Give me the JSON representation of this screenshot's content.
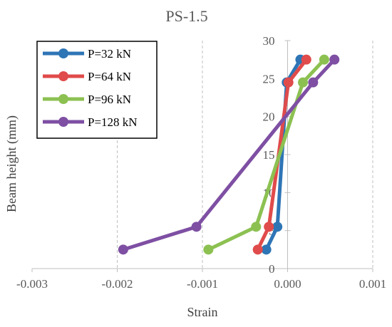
{
  "chart_data": {
    "type": "scatter",
    "title": "PS-1.5",
    "xlabel": "Strain",
    "ylabel": "Beam height (mm)",
    "xlim": [
      -0.003,
      0.001
    ],
    "ylim": [
      0,
      30
    ],
    "x_ticks": [
      "-0.003",
      "-0.002",
      "-0.001",
      "0.000",
      "0.001"
    ],
    "x_tick_values": [
      -0.003,
      -0.002,
      -0.001,
      0.0,
      0.001
    ],
    "y_ticks": [
      "0",
      "5",
      "10",
      "15",
      "20",
      "25",
      "30"
    ],
    "y_tick_values": [
      0,
      5,
      10,
      15,
      20,
      25,
      30
    ],
    "grid": "vertical dashed",
    "legend_position": "top-left",
    "series": [
      {
        "name": "P=32 kN",
        "color": "#2E75B6",
        "x": [
          -0.00025,
          -0.00012,
          -1e-05,
          0.00015
        ],
        "y": [
          2.5,
          5.5,
          24.5,
          27.5
        ]
      },
      {
        "name": "P=64 kN",
        "color": "#E04B4B",
        "x": [
          -0.00035,
          -0.00022,
          1e-05,
          0.00022
        ],
        "y": [
          2.5,
          5.5,
          24.5,
          27.5
        ]
      },
      {
        "name": "P=96 kN",
        "color": "#8CC152",
        "x": [
          -0.00093,
          -0.00037,
          0.00018,
          0.00043
        ],
        "y": [
          2.5,
          5.5,
          24.5,
          27.5
        ]
      },
      {
        "name": "P=128 kN",
        "color": "#7E4FA3",
        "x": [
          -0.00193,
          -0.00107,
          0.0003,
          0.00055
        ],
        "y": [
          2.5,
          5.5,
          24.5,
          27.5
        ]
      }
    ]
  }
}
